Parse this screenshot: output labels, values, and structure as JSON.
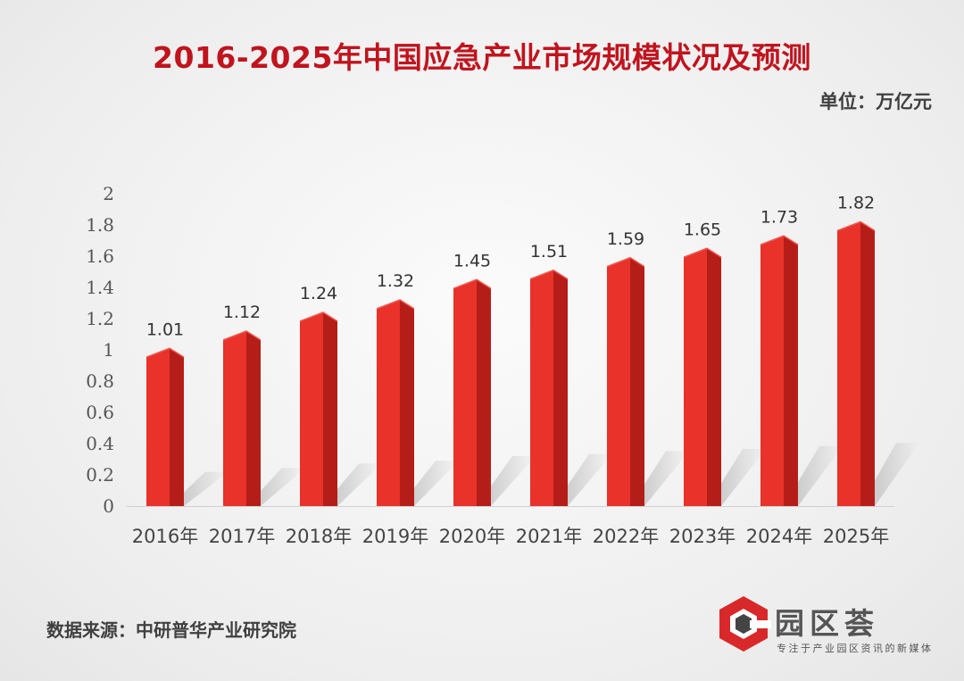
{
  "title": "2016-2025年中国应急产业市场规模状况及预测",
  "unit": "单位：万亿元",
  "source": "数据来源：中研普华产业研究院",
  "logo": {
    "name": "园区荟",
    "tagline": "专注于产业园区资讯的新媒体",
    "icon": "hexagon-c-logo-icon",
    "colors": {
      "red": "#d8282a",
      "dark": "#444444"
    }
  },
  "colors": {
    "bar_front": "#e8322a",
    "bar_side": "#b51e18",
    "bar_top": "#f2564c",
    "title": "#c0141e"
  },
  "chart_data": {
    "type": "bar",
    "title": "2016-2025年中国应急产业市场规模状况及预测",
    "xlabel": "",
    "ylabel": "",
    "unit": "万亿元",
    "categories": [
      "2016年",
      "2017年",
      "2018年",
      "2019年",
      "2020年",
      "2021年",
      "2022年",
      "2023年",
      "2024年",
      "2025年"
    ],
    "values": [
      1.01,
      1.12,
      1.24,
      1.32,
      1.45,
      1.51,
      1.59,
      1.65,
      1.73,
      1.82
    ],
    "data_labels": [
      "1.01",
      "1.12",
      "1.24",
      "1.32",
      "1.45",
      "1.51",
      "1.59",
      "1.65",
      "1.73",
      "1.82"
    ],
    "ylim": [
      0,
      2
    ],
    "yticks": [
      "0",
      "0.2",
      "0.4",
      "0.6",
      "0.8",
      "1",
      "1.2",
      "1.4",
      "1.6",
      "1.8",
      "2"
    ],
    "grid": false,
    "legend": "none"
  }
}
